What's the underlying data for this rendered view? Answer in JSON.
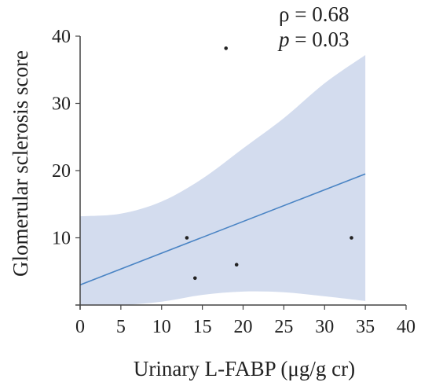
{
  "chart_data": {
    "type": "scatter",
    "xlabel": "Urinary L-FABP (μg/g cr)",
    "ylabel": "Glomerular sclerosis score",
    "xlim": [
      0,
      40
    ],
    "ylim": [
      0,
      40
    ],
    "xticks": [
      "0",
      "5",
      "10",
      "15",
      "20",
      "25",
      "30",
      "35",
      "40"
    ],
    "yticks": [
      "10",
      "20",
      "30",
      "40"
    ],
    "points": [
      {
        "x": 13.1,
        "y": 10
      },
      {
        "x": 14.1,
        "y": 4
      },
      {
        "x": 17.9,
        "y": 38.2
      },
      {
        "x": 19.2,
        "y": 6
      },
      {
        "x": 33.3,
        "y": 10
      }
    ],
    "regression": {
      "x": [
        0,
        35
      ],
      "y": [
        3.0,
        19.5
      ]
    },
    "confidence_band": {
      "x": [
        0,
        5,
        10,
        15,
        20,
        25,
        30,
        35
      ],
      "upper": [
        13.2,
        13.6,
        15.4,
        18.8,
        23.3,
        27.8,
        33.0,
        37.2
      ],
      "lower": [
        0,
        0,
        0.5,
        1.5,
        2.0,
        1.9,
        1.3,
        0.6
      ]
    },
    "annotation": {
      "rho_label": "ρ = 0.68",
      "p_symbol": "p",
      "p_value_text": " = 0.03"
    },
    "colors": {
      "band": "#d3dcee",
      "line": "#4a84c4",
      "points": "#222222",
      "axis": "#444444"
    }
  }
}
